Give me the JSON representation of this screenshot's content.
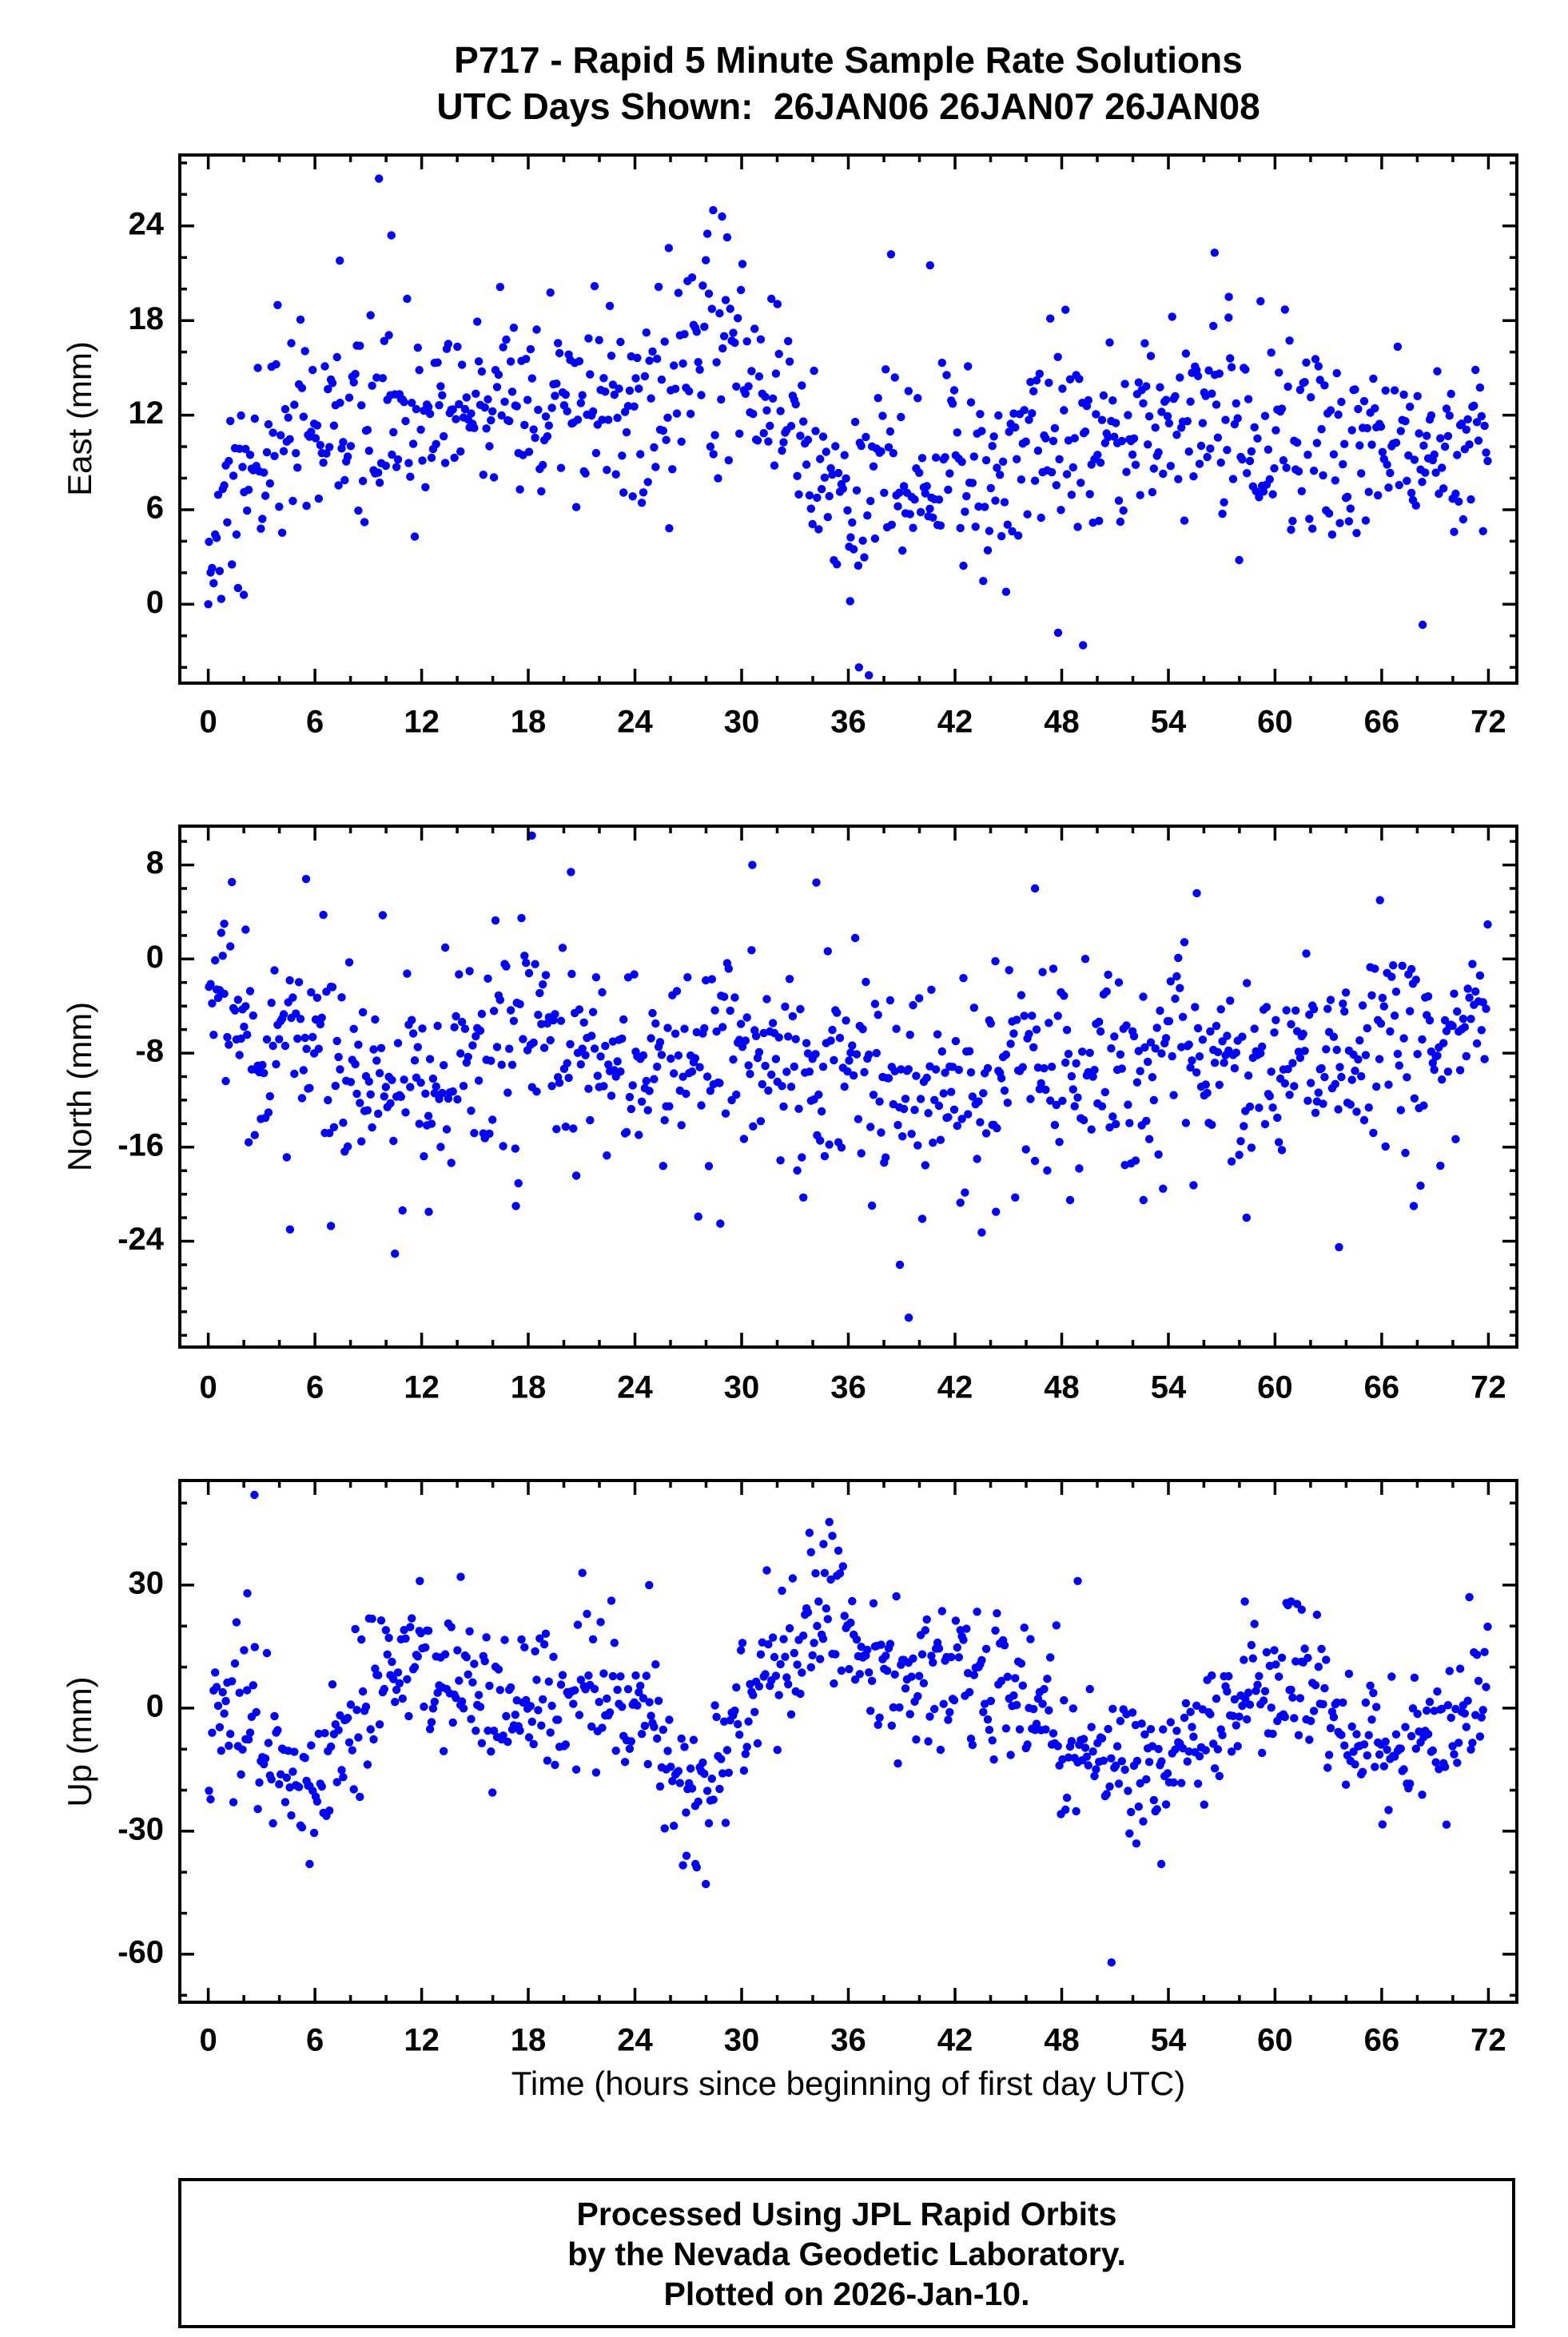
{
  "title": {
    "line1": "P717 - Rapid 5 Minute Sample Rate Solutions",
    "line2": "UTC Days Shown:  26JAN06 26JAN07 26JAN08"
  },
  "footer": {
    "line1": "Processed Using JPL Rapid Orbits",
    "line2": "by the Nevada Geodetic Laboratory.",
    "line3": "Plotted on 2026-Jan-10."
  },
  "xaxis": {
    "label": "Time (hours since beginning of first day UTC)",
    "ticks": [
      0,
      6,
      12,
      18,
      24,
      30,
      36,
      42,
      48,
      54,
      60,
      66,
      72
    ],
    "minor_step": 2,
    "xlim": [
      -1.6,
      73.6
    ]
  },
  "style": {
    "point_color": "#0000ff",
    "frame_color": "#000000",
    "point_radius": 5.2
  },
  "chart_data": [
    {
      "type": "scatter",
      "name": "east",
      "ylabel": "East (mm)",
      "ylim": [
        -5.0,
        28.5
      ],
      "yticks": [
        0,
        6,
        12,
        18,
        24
      ],
      "yminor_step": 2,
      "x_range_hours": [
        0,
        72
      ],
      "n_points": 840,
      "seed": 1137,
      "trend_t_mean_std": [
        [
          0,
          2,
          2
        ],
        [
          1,
          7,
          3
        ],
        [
          3,
          10,
          3.5
        ],
        [
          6,
          11,
          3
        ],
        [
          9,
          12,
          3.5
        ],
        [
          12,
          13,
          3
        ],
        [
          15,
          13,
          3
        ],
        [
          18,
          12.5,
          3
        ],
        [
          21,
          13,
          3
        ],
        [
          24,
          13,
          3
        ],
        [
          26,
          13,
          3.5
        ],
        [
          28,
          16,
          4
        ],
        [
          29,
          15,
          4
        ],
        [
          31,
          13,
          3
        ],
        [
          33,
          11,
          3
        ],
        [
          34,
          9,
          3
        ],
        [
          35,
          7,
          2.5
        ],
        [
          36,
          6,
          2.5
        ],
        [
          37,
          7,
          3
        ],
        [
          38,
          9,
          4
        ],
        [
          39,
          8,
          3.5
        ],
        [
          40,
          8,
          3
        ],
        [
          42,
          9,
          3.5
        ],
        [
          44,
          8,
          3
        ],
        [
          46,
          10,
          3
        ],
        [
          48,
          11,
          3
        ],
        [
          50,
          11,
          3
        ],
        [
          52,
          10,
          3
        ],
        [
          54,
          11,
          3
        ],
        [
          56,
          12,
          3.5
        ],
        [
          58,
          11,
          3.5
        ],
        [
          60,
          11,
          3
        ],
        [
          62,
          10,
          3
        ],
        [
          64,
          10,
          3
        ],
        [
          66,
          10,
          3
        ],
        [
          68,
          10,
          2.5
        ],
        [
          70,
          9.5,
          2.5
        ],
        [
          72,
          11,
          2.5
        ]
      ],
      "outliers": [
        [
          0,
          0
        ],
        [
          9.6,
          27
        ],
        [
          28.4,
          25
        ],
        [
          28.9,
          24.6
        ],
        [
          10.3,
          23.4
        ],
        [
          36.6,
          -4
        ],
        [
          36.1,
          0.2
        ],
        [
          47.8,
          -1.8
        ],
        [
          49.2,
          -2.6
        ],
        [
          56.6,
          22.3
        ],
        [
          68.3,
          -1.3
        ],
        [
          57.4,
          19.5
        ],
        [
          40.6,
          21.5
        ],
        [
          38.4,
          22.2
        ],
        [
          25.9,
          22.6
        ],
        [
          7.4,
          21.8
        ],
        [
          2.0,
          0.6
        ]
      ]
    },
    {
      "type": "scatter",
      "name": "north",
      "ylabel": "North (mm)",
      "ylim": [
        -33.0,
        11.3
      ],
      "yticks": [
        -24,
        -16,
        -8,
        0,
        8
      ],
      "yminor_step": 2,
      "x_range_hours": [
        0,
        72
      ],
      "n_points": 840,
      "seed": 2137,
      "trend_t_mean_std": [
        [
          0,
          -1.5,
          2
        ],
        [
          1,
          -4,
          3
        ],
        [
          2,
          -6,
          4
        ],
        [
          4,
          -8,
          4.5
        ],
        [
          6,
          -8,
          5
        ],
        [
          8,
          -9,
          4
        ],
        [
          10,
          -10,
          4
        ],
        [
          12,
          -10,
          4
        ],
        [
          14,
          -9,
          4.5
        ],
        [
          16,
          -8,
          5
        ],
        [
          18,
          -6,
          5
        ],
        [
          20,
          -8,
          4.5
        ],
        [
          22,
          -9,
          4
        ],
        [
          24,
          -10,
          4
        ],
        [
          26,
          -9,
          4.5
        ],
        [
          28,
          -9,
          4.5
        ],
        [
          30,
          -8,
          4.5
        ],
        [
          32,
          -10,
          4
        ],
        [
          34,
          -10,
          4.5
        ],
        [
          36,
          -11,
          4.5
        ],
        [
          38,
          -11,
          5
        ],
        [
          40,
          -12,
          5
        ],
        [
          42,
          -10,
          4.5
        ],
        [
          44,
          -9,
          4.5
        ],
        [
          46,
          -10,
          4
        ],
        [
          48,
          -10,
          4
        ],
        [
          50,
          -9,
          4
        ],
        [
          52,
          -9,
          4
        ],
        [
          54,
          -9,
          4
        ],
        [
          56,
          -9,
          4
        ],
        [
          58,
          -8.5,
          4
        ],
        [
          60,
          -9,
          4
        ],
        [
          62,
          -8,
          4
        ],
        [
          64,
          -8,
          4
        ],
        [
          66,
          -7,
          4
        ],
        [
          68,
          -7,
          4
        ],
        [
          70,
          -6,
          3.5
        ],
        [
          72,
          -4,
          3
        ]
      ],
      "outliers": [
        [
          18.2,
          10.5
        ],
        [
          30.6,
          8
        ],
        [
          20.4,
          7.4
        ],
        [
          39.4,
          -30.5
        ],
        [
          38.9,
          -26
        ],
        [
          63.6,
          -24.5
        ],
        [
          4.6,
          -23
        ],
        [
          6.9,
          -22.7
        ],
        [
          55.6,
          5.6
        ],
        [
          65.9,
          5
        ],
        [
          28.8,
          -22.5
        ],
        [
          12.4,
          -21.5
        ],
        [
          17.3,
          -21
        ],
        [
          44.3,
          -21.5
        ],
        [
          52.6,
          -20.5
        ],
        [
          58.4,
          -22
        ],
        [
          67.8,
          -21
        ],
        [
          0.9,
          3
        ],
        [
          2.1,
          2.5
        ],
        [
          34.2,
          6.5
        ],
        [
          46.5,
          6
        ],
        [
          5.5,
          6.8
        ]
      ]
    },
    {
      "type": "scatter",
      "name": "up",
      "ylabel": "Up (mm)",
      "ylim": [
        -71.7,
        55.5
      ],
      "yticks": [
        -60,
        -30,
        0,
        30
      ],
      "yminor_step": 10,
      "x_range_hours": [
        0,
        72
      ],
      "n_points": 840,
      "seed": 3137,
      "trend_t_mean_std": [
        [
          0,
          -5,
          8
        ],
        [
          1,
          -2,
          9
        ],
        [
          2,
          0,
          12
        ],
        [
          3,
          -8,
          10
        ],
        [
          4,
          -16,
          9
        ],
        [
          5,
          -22,
          8
        ],
        [
          6,
          -20,
          8
        ],
        [
          7,
          -12,
          9
        ],
        [
          8,
          -4,
          9
        ],
        [
          9,
          2,
          10
        ],
        [
          10,
          8,
          9
        ],
        [
          11,
          10,
          9
        ],
        [
          12,
          8,
          9
        ],
        [
          13,
          6,
          10
        ],
        [
          14,
          6,
          10
        ],
        [
          15,
          2,
          9
        ],
        [
          16,
          0,
          9
        ],
        [
          17,
          2,
          9
        ],
        [
          18,
          2,
          10
        ],
        [
          19,
          3,
          9
        ],
        [
          20,
          2,
          8
        ],
        [
          21,
          4,
          9
        ],
        [
          22,
          6,
          9
        ],
        [
          23,
          8,
          10
        ],
        [
          24,
          4,
          9
        ],
        [
          25,
          -2,
          9
        ],
        [
          26,
          -12,
          9
        ],
        [
          27,
          -24,
          8
        ],
        [
          28,
          -18,
          9
        ],
        [
          29,
          -10,
          10
        ],
        [
          30,
          -2,
          10
        ],
        [
          31,
          6,
          9
        ],
        [
          32,
          10,
          9
        ],
        [
          33,
          14,
          9
        ],
        [
          34,
          22,
          9
        ],
        [
          35,
          28,
          8
        ],
        [
          36,
          18,
          9
        ],
        [
          37,
          10,
          9
        ],
        [
          38,
          6,
          9
        ],
        [
          39,
          4,
          10
        ],
        [
          40,
          6,
          9
        ],
        [
          41,
          8,
          9
        ],
        [
          42,
          10,
          9
        ],
        [
          43,
          8,
          9
        ],
        [
          44,
          6,
          9
        ],
        [
          45,
          4,
          9
        ],
        [
          46,
          2,
          9
        ],
        [
          47,
          0,
          9
        ],
        [
          48,
          -4,
          9
        ],
        [
          49,
          -8,
          8
        ],
        [
          50,
          -10,
          9
        ],
        [
          51,
          -12,
          9
        ],
        [
          52,
          -14,
          8
        ],
        [
          53,
          -16,
          8
        ],
        [
          54,
          -15,
          8
        ],
        [
          55,
          -14,
          8
        ],
        [
          56,
          -8,
          8
        ],
        [
          57,
          -4,
          8
        ],
        [
          58,
          0,
          9
        ],
        [
          59,
          2,
          9
        ],
        [
          60,
          6,
          9
        ],
        [
          61,
          8,
          9
        ],
        [
          62,
          4,
          9
        ],
        [
          63,
          0,
          9
        ],
        [
          64,
          -4,
          8
        ],
        [
          65,
          -8,
          8
        ],
        [
          66,
          -10,
          8
        ],
        [
          67,
          -10,
          8
        ],
        [
          68,
          -8,
          8
        ],
        [
          69,
          -6,
          8
        ],
        [
          70,
          -4,
          8
        ],
        [
          71,
          0,
          9
        ],
        [
          72,
          4,
          9
        ]
      ],
      "outliers": [
        [
          2.6,
          52
        ],
        [
          50.8,
          -62
        ],
        [
          35.1,
          42
        ],
        [
          34.6,
          40
        ],
        [
          33.9,
          38
        ],
        [
          14.2,
          32
        ],
        [
          48.9,
          31
        ],
        [
          60.9,
          26
        ],
        [
          27.4,
          -38
        ],
        [
          53.6,
          -38
        ],
        [
          5.7,
          -38
        ],
        [
          26.9,
          -36
        ],
        [
          52.2,
          -33
        ],
        [
          24.8,
          30
        ],
        [
          11.9,
          31
        ],
        [
          2.2,
          28
        ],
        [
          58.3,
          26
        ],
        [
          61.5,
          24
        ]
      ]
    }
  ]
}
